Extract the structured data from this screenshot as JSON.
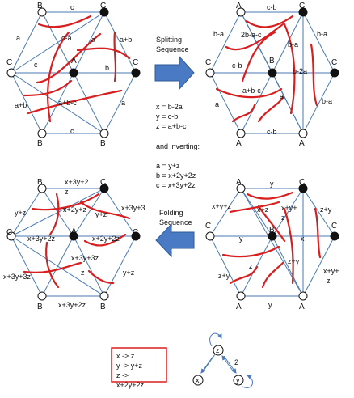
{
  "splitting_label": [
    "Splitting",
    "Sequence"
  ],
  "folding_label": [
    "Folding",
    "Sequence"
  ],
  "equations": {
    "forward": [
      "x = b-2a",
      "y = c-b",
      "z = a+b-c"
    ],
    "inverting_title": "and inverting:",
    "inverse": [
      "a = y+z",
      "b = x+2y+2z",
      "c = x+3y+2z"
    ]
  },
  "mutation_box": [
    "x  ->  z",
    "y  ->  y+z",
    "z  ->",
    "x+2y+2z"
  ],
  "quiver": {
    "nodes": [
      "z",
      "x",
      "y"
    ],
    "edge_label": "2"
  },
  "hex_tl": {
    "vertices": [
      "B",
      "C",
      "C",
      "A",
      "B",
      "B",
      "C"
    ],
    "edge_labels": [
      "c",
      "c-a",
      "a",
      "a+b",
      "c",
      "b",
      "a+b",
      "a+b-c",
      "a",
      "c"
    ]
  },
  "hex_tr": {
    "vertices": [
      "A",
      "C",
      "C",
      "B",
      "A",
      "A",
      "C"
    ],
    "edge_labels": [
      "c-b",
      "b-a",
      "2b-a-c",
      "b-a",
      "c-b",
      "b-2a",
      "a+b-c",
      "a",
      "a",
      "b-a",
      "c-b"
    ]
  },
  "hex_bl": {
    "vertices": [
      "B",
      "C",
      "C",
      "A",
      "B",
      "B",
      "C"
    ],
    "edge_labels": [
      "x+3y+2",
      "z",
      "y+z",
      "x+2y+z",
      "y+z",
      "x+3y+3",
      "x+3y+2z",
      "x+2y+2z",
      "x+3y+3z",
      "x+3y+3z",
      "z",
      "y+z",
      "x+3y+2z"
    ]
  },
  "hex_br": {
    "vertices": [
      "A",
      "C",
      "C",
      "B",
      "A",
      "A",
      "C"
    ],
    "edge_labels": [
      "y",
      "x+y+z",
      "x+z",
      "x+y+",
      "z",
      "z+y",
      "y",
      "x",
      "z+y",
      "z",
      "x+y+",
      "z",
      "z+y",
      "y"
    ]
  }
}
